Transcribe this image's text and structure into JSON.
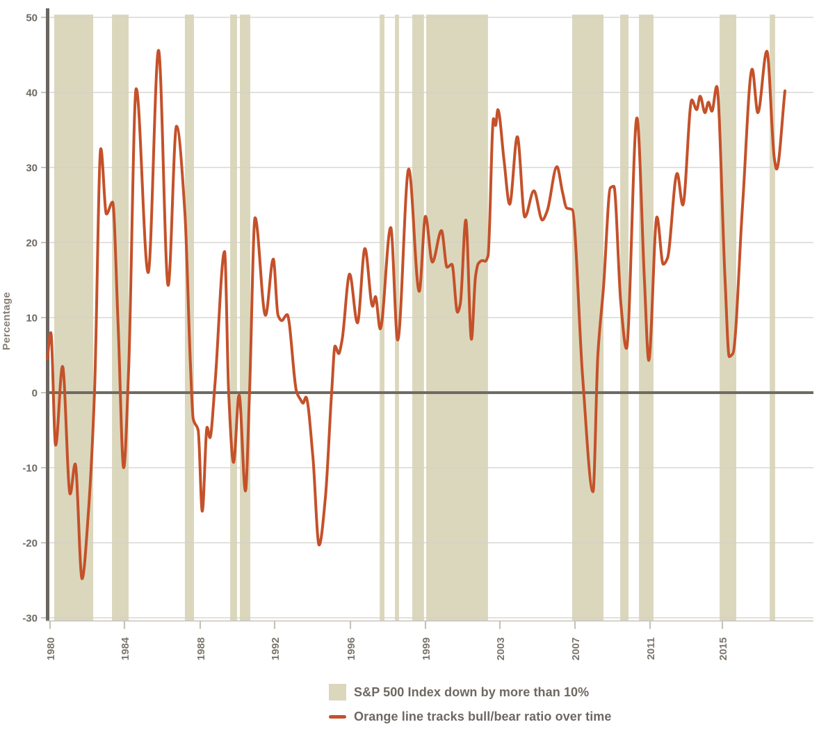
{
  "legend": {
    "band_label": "S&P 500 Index down by more than 10%",
    "line_label": "Orange line tracks bull/bear ratio over time"
  },
  "colors": {
    "line": "#c4512a",
    "band": "#dbd7bd",
    "grid": "#d2cfc9",
    "zero_line": "#6f6a63",
    "axis_bar": "#6b6661",
    "bottom_line": "#c7c3ba",
    "x_tick_text": "#7b756c",
    "y_tick_text": "#6e6962",
    "y_axis_label_text": "#868076",
    "legend_text": "#6e6861"
  },
  "chart_data": {
    "type": "line",
    "ylabel": "Percentage",
    "ylim": [
      -30,
      50
    ],
    "y_ticks": [
      50,
      40,
      30,
      20,
      10,
      0,
      -10,
      -20,
      -30
    ],
    "x_tick_years": [
      1980,
      1984,
      1988,
      1992,
      1996,
      1999,
      2003,
      2007,
      2011,
      2015
    ],
    "grid": true,
    "zero_line": true,
    "legend_position": "bottom",
    "series": [
      {
        "name": "Orange line tracks bull/bear ratio over time",
        "color": "#c4512a",
        "points": [
          [
            1979.85,
            4.5
          ],
          [
            1980.04,
            8.0
          ],
          [
            1980.3,
            -7.0
          ],
          [
            1980.67,
            3.5
          ],
          [
            1981.08,
            -13.5
          ],
          [
            1981.35,
            -9.5
          ],
          [
            1981.72,
            -24.8
          ],
          [
            1982.06,
            -16.0
          ],
          [
            1982.39,
            0.0
          ],
          [
            1982.73,
            32.5
          ],
          [
            1983.03,
            23.8
          ],
          [
            1983.36,
            25.4
          ],
          [
            1983.66,
            9.0
          ],
          [
            1983.96,
            -10.0
          ],
          [
            1984.22,
            3.0
          ],
          [
            1984.62,
            40.5
          ],
          [
            1985.25,
            16.0
          ],
          [
            1985.8,
            45.6
          ],
          [
            1986.31,
            14.3
          ],
          [
            1986.75,
            35.5
          ],
          [
            1987.19,
            24.0
          ],
          [
            1987.48,
            4.0
          ],
          [
            1987.63,
            -3.5
          ],
          [
            1987.89,
            -5.0
          ],
          [
            1988.11,
            -15.8
          ],
          [
            1988.37,
            -4.6
          ],
          [
            1988.52,
            -6.0
          ],
          [
            1988.79,
            1.0
          ],
          [
            1989.31,
            18.8
          ],
          [
            1989.53,
            0.0
          ],
          [
            1989.79,
            -9.3
          ],
          [
            1990.09,
            -0.3
          ],
          [
            1990.43,
            -13.1
          ],
          [
            1990.65,
            0.0
          ],
          [
            1990.95,
            23.3
          ],
          [
            1991.51,
            10.3
          ],
          [
            1991.93,
            17.8
          ],
          [
            1992.18,
            10.3
          ],
          [
            1992.37,
            9.6
          ],
          [
            1992.66,
            10.4
          ],
          [
            1993.17,
            0.0
          ],
          [
            1993.36,
            -0.9
          ],
          [
            1993.5,
            -1.4
          ],
          [
            1993.65,
            -0.6
          ],
          [
            1994.02,
            -8.5
          ],
          [
            1994.35,
            -20.3
          ],
          [
            1994.68,
            -14.0
          ],
          [
            1995.01,
            0.0
          ],
          [
            1995.19,
            6.2
          ],
          [
            1995.38,
            5.2
          ],
          [
            1995.56,
            7.0
          ],
          [
            1995.96,
            15.8
          ],
          [
            1996.28,
            9.3
          ],
          [
            1996.58,
            19.2
          ],
          [
            1996.89,
            11.5
          ],
          [
            1997.0,
            12.8
          ],
          [
            1997.19,
            8.5
          ],
          [
            1997.61,
            22.0
          ],
          [
            1997.89,
            7.0
          ],
          [
            1998.33,
            29.8
          ],
          [
            1998.75,
            13.5
          ],
          [
            1999.0,
            23.5
          ],
          [
            1999.37,
            17.4
          ],
          [
            1999.86,
            21.6
          ],
          [
            2000.16,
            16.7
          ],
          [
            2000.42,
            17.1
          ],
          [
            2000.72,
            10.7
          ],
          [
            2000.87,
            11.8
          ],
          [
            2001.17,
            23.0
          ],
          [
            2001.47,
            7.1
          ],
          [
            2001.69,
            15.5
          ],
          [
            2001.84,
            17.2
          ],
          [
            2002.07,
            17.6
          ],
          [
            2002.21,
            17.5
          ],
          [
            2002.36,
            18.2
          ],
          [
            2002.66,
            36.5
          ],
          [
            2002.77,
            35.6
          ],
          [
            2002.89,
            37.7
          ],
          [
            2003.22,
            31.0
          ],
          [
            2003.52,
            25.1
          ],
          [
            2003.93,
            34.1
          ],
          [
            2004.33,
            23.4
          ],
          [
            2004.81,
            26.9
          ],
          [
            2005.26,
            23.0
          ],
          [
            2005.52,
            24.2
          ],
          [
            2006.04,
            30.1
          ],
          [
            2006.33,
            26.8
          ],
          [
            2006.56,
            24.6
          ],
          [
            2006.85,
            24.4
          ],
          [
            2007.41,
            2.0
          ],
          [
            2007.96,
            -13.2
          ],
          [
            2008.22,
            5.0
          ],
          [
            2008.52,
            14.0
          ],
          [
            2008.89,
            27.3
          ],
          [
            2009.07,
            27.5
          ],
          [
            2009.44,
            12.0
          ],
          [
            2009.74,
            5.9
          ],
          [
            2010.3,
            36.6
          ],
          [
            2010.7,
            15.0
          ],
          [
            2010.93,
            4.3
          ],
          [
            2011.38,
            23.4
          ],
          [
            2011.73,
            17.1
          ],
          [
            2011.96,
            17.9
          ],
          [
            2012.5,
            29.2
          ],
          [
            2012.81,
            25.0
          ],
          [
            2013.31,
            39.0
          ],
          [
            2013.58,
            37.7
          ],
          [
            2013.77,
            39.5
          ],
          [
            2014.04,
            37.3
          ],
          [
            2014.23,
            38.7
          ],
          [
            2014.42,
            37.5
          ],
          [
            2014.69,
            40.8
          ],
          [
            2015.15,
            15.0
          ],
          [
            2015.38,
            4.8
          ],
          [
            2015.58,
            5.2
          ],
          [
            2016.12,
            25.0
          ],
          [
            2016.65,
            43.1
          ],
          [
            2016.96,
            37.3
          ],
          [
            2017.46,
            45.5
          ],
          [
            2017.88,
            31.1
          ],
          [
            2018.0,
            29.8
          ],
          [
            2018.46,
            40.2
          ]
        ]
      }
    ],
    "shaded_regions": {
      "label": "S&P 500 Index down by more than 10%",
      "color": "#dbd7bd",
      "ranges": [
        [
          1980.22,
          1982.32
        ],
        [
          1983.33,
          1984.22
        ],
        [
          1987.19,
          1987.67
        ],
        [
          1989.61,
          1989.98
        ],
        [
          1990.13,
          1990.69
        ],
        [
          1997.17,
          1997.36
        ],
        [
          1997.78,
          1997.94
        ],
        [
          1998.47,
          1998.94
        ],
        [
          1999.04,
          2002.36
        ],
        [
          2006.85,
          2008.52
        ],
        [
          2009.41,
          2009.85
        ],
        [
          2010.41,
          2011.19
        ],
        [
          2014.85,
          2015.77
        ],
        [
          2017.62,
          2017.92
        ]
      ]
    }
  }
}
